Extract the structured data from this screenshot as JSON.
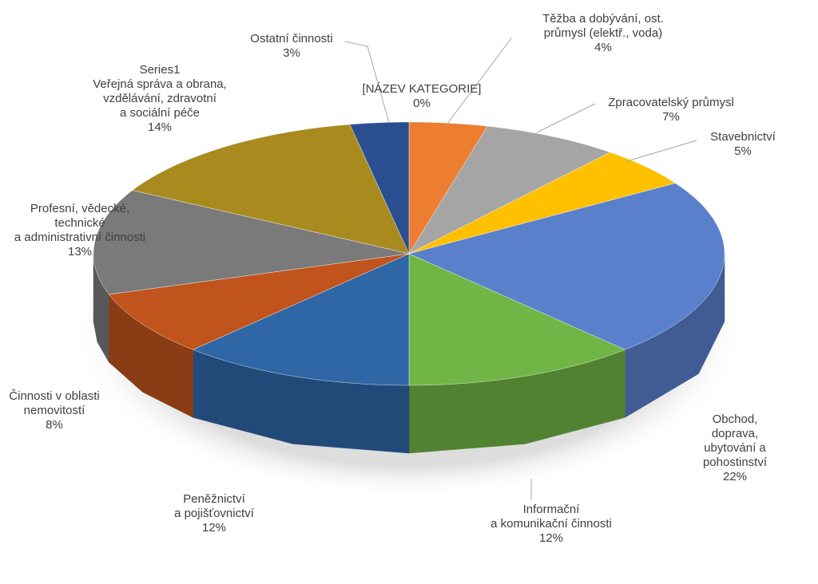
{
  "chart_data": {
    "type": "pie3d",
    "categories": [
      "[NÁZEV KATEGORIE]",
      "Těžba a dobývání, ost.\nprůmysl (elektř., voda)",
      "Zpracovatelský průmysl",
      "Stavebnictví",
      "Obchod, doprava,\nubytování a pohostinství",
      "Informační\na komunikační činnosti",
      "Peněžnictví\na pojišťovnictví",
      "Činnosti v oblasti\nnemovitostí",
      "Profesní, vědecké,\ntechnické\na administrativní činnosti",
      "Series1\nVeřejná správa a obrana,\nvzdělávání, zdravotní\na sociální péče",
      "Ostatní činnosti"
    ],
    "values": [
      0,
      4,
      7,
      5,
      22,
      12,
      12,
      8,
      13,
      14,
      3
    ],
    "value_labels": [
      "0%",
      "4%",
      "7%",
      "5%",
      "22%",
      "12%",
      "12%",
      "8%",
      "13%",
      "14%",
      "3%"
    ],
    "colors": [
      "#5b9bd5",
      "#ed7d31",
      "#a5a5a5",
      "#ffc000",
      "#5a80cc",
      "#70b545",
      "#2f67a6",
      "#c0541c",
      "#7a7a7a",
      "#a88a1f",
      "#2a4f91"
    ]
  }
}
